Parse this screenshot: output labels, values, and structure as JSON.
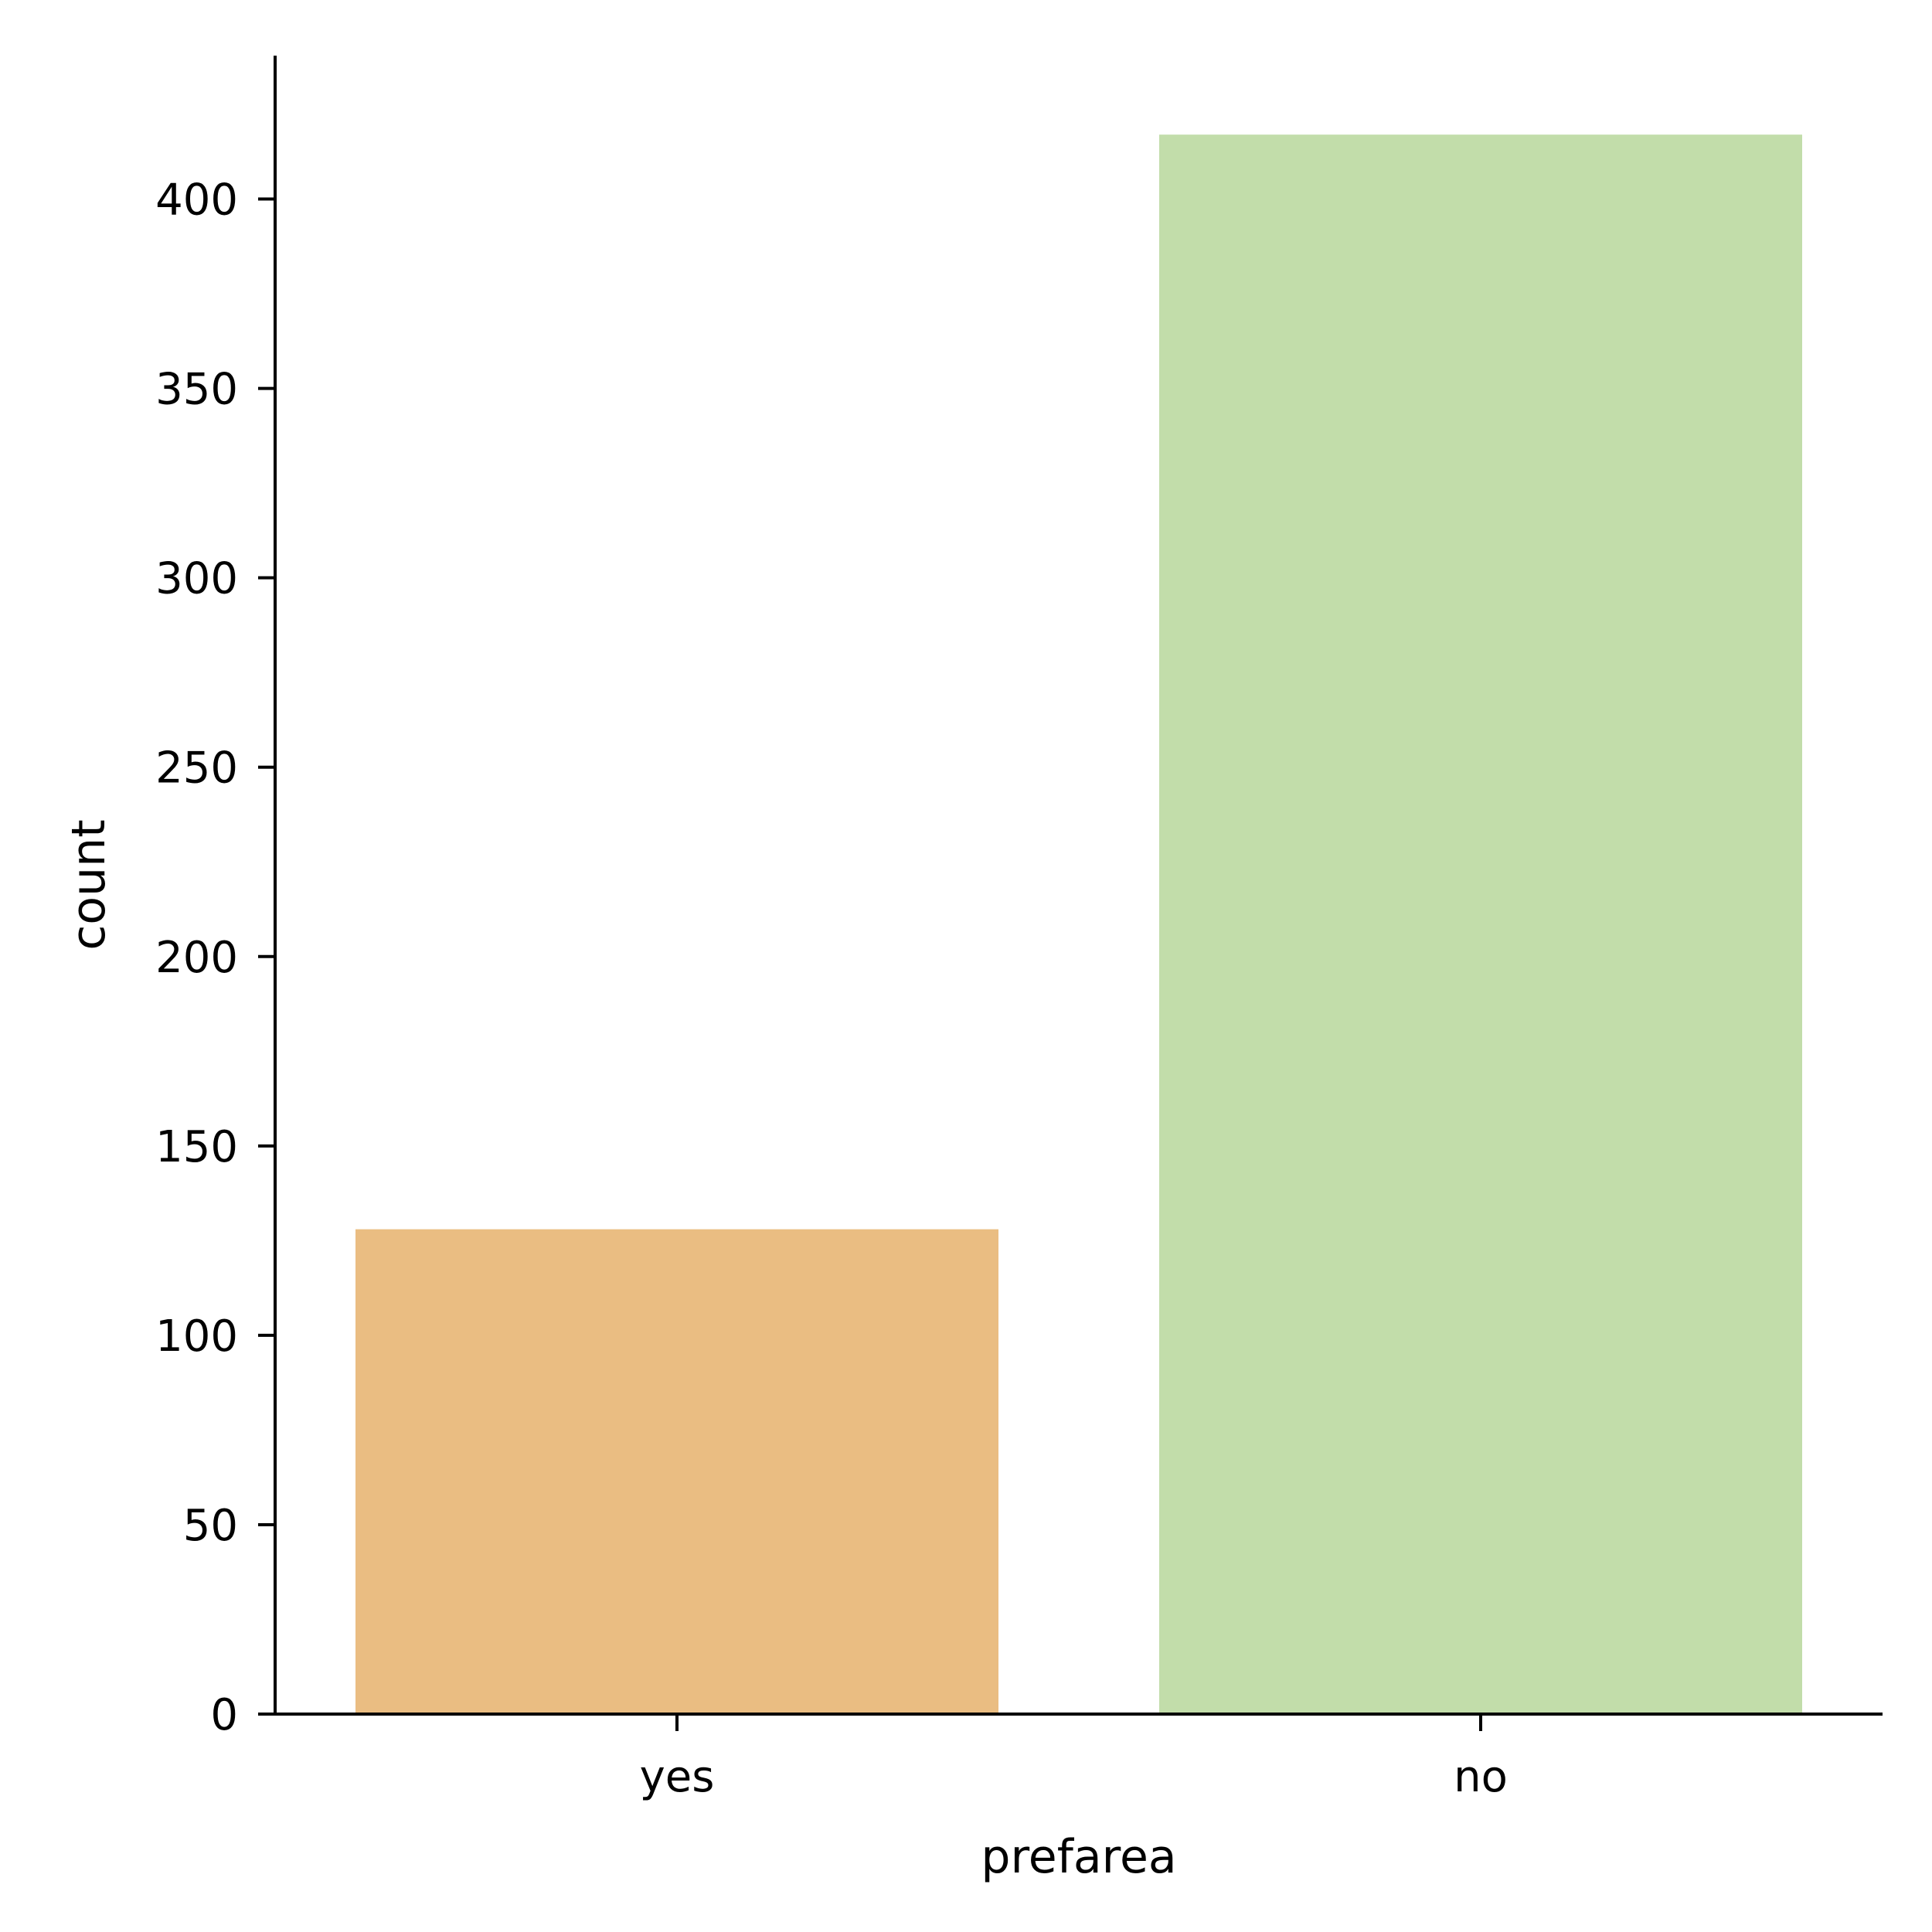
{
  "chart_data": {
    "type": "bar",
    "categories": [
      "yes",
      "no"
    ],
    "values": [
      128,
      417
    ],
    "colors": [
      "#EABD82",
      "#C2DDAA"
    ],
    "xlabel": "prefarea",
    "ylabel": "count",
    "ylim": [
      0,
      437.85
    ],
    "yticks": [
      0,
      50,
      100,
      150,
      200,
      250,
      300,
      350,
      400
    ],
    "grid": false,
    "legend": "none"
  }
}
